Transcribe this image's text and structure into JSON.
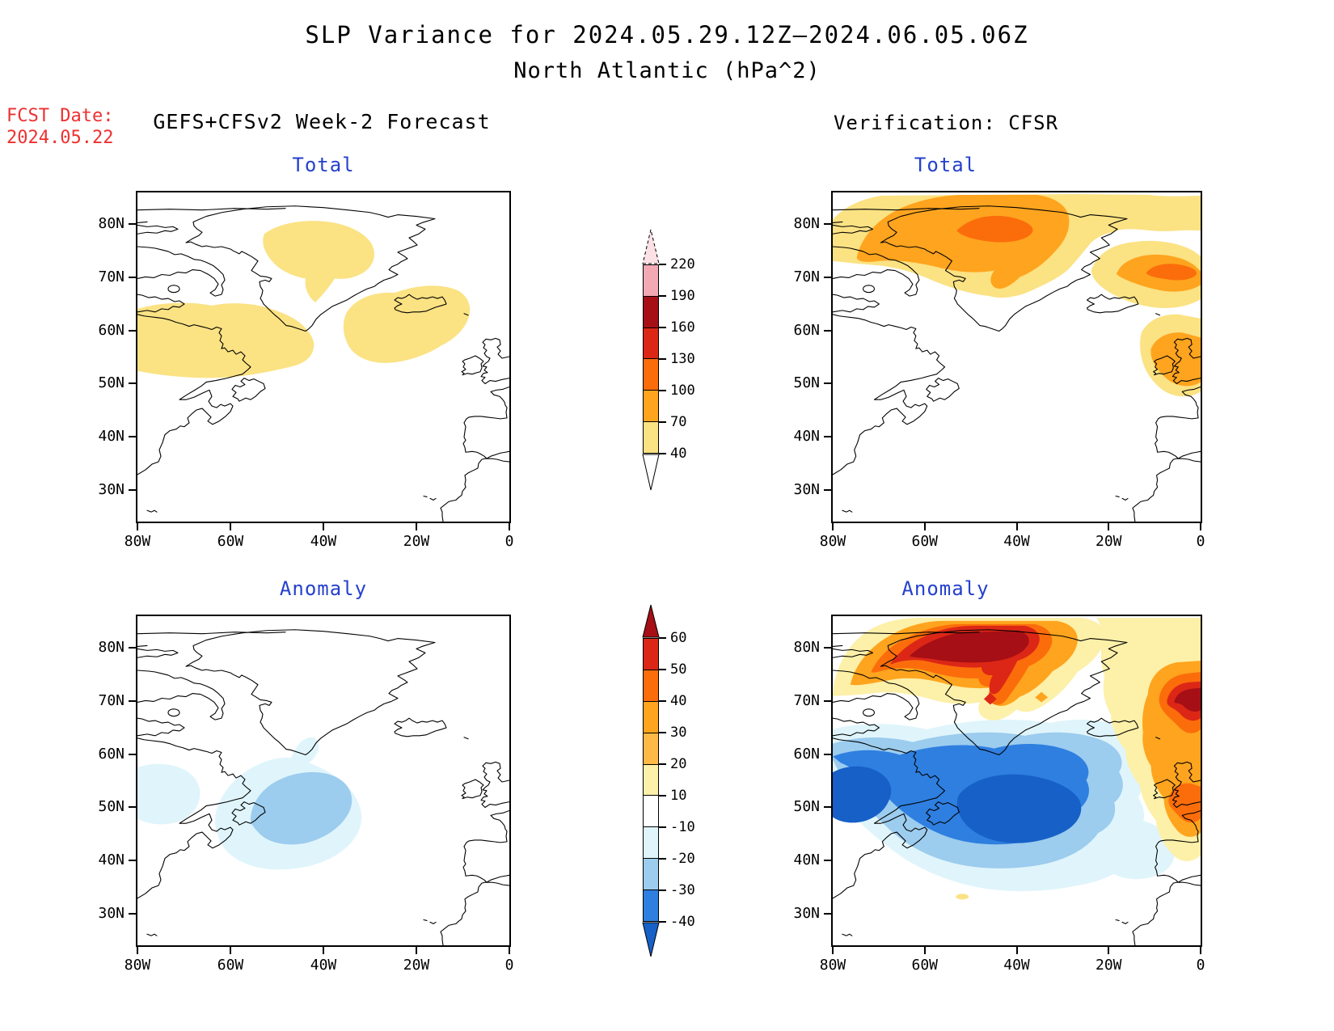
{
  "header": {
    "title_line1": "SLP Variance for 2024.05.29.12Z–2024.06.05.06Z",
    "title_line2": "North Atlantic (hPa^2)",
    "fcst_label": "FCST Date:",
    "fcst_date": "2024.05.22",
    "left_header": "GEFS+CFSv2 Week-2 Forecast",
    "right_header": "Verification: CFSR"
  },
  "panels": [
    {
      "id": "forecast-total",
      "title": "Total"
    },
    {
      "id": "verification-total",
      "title": "Total"
    },
    {
      "id": "forecast-anomaly",
      "title": "Anomaly"
    },
    {
      "id": "verification-anomaly",
      "title": "Anomaly"
    }
  ],
  "axes": {
    "lat_ticks": [
      "80N",
      "70N",
      "60N",
      "50N",
      "40N",
      "30N"
    ],
    "lon_ticks": [
      "80W",
      "60W",
      "40W",
      "20W",
      "0"
    ]
  },
  "palette": {
    "gold": "#FBE283",
    "amber": "#FFA41E",
    "lightamber": "#FFB946",
    "orange": "#FB6D0B",
    "red": "#DC2716",
    "darkred": "#A50F15",
    "pink": "#F2A9B4",
    "palepink": "#FBE0E6",
    "paleyellow": "#FDF0A8",
    "white": "#FFFFFF",
    "palecyan": "#DFF5FB",
    "lightblue": "#9CCCEE",
    "brightblue": "#2E7FE0",
    "deepblue": "#1660C8",
    "title_blue": "#2441CC",
    "label_red": "#EE3030"
  },
  "colorbars": {
    "total": {
      "boundaries": [
        "220",
        "190",
        "160",
        "130",
        "100",
        "70",
        "40"
      ],
      "segments_top_to_bottom": [
        "pink",
        "darkred",
        "red",
        "orange",
        "amber",
        "gold"
      ],
      "above_color": "palepink",
      "below_color": "white"
    },
    "anomaly": {
      "boundaries": [
        "60",
        "50",
        "40",
        "30",
        "20",
        "10",
        "-10",
        "-20",
        "-30",
        "-40"
      ],
      "segments_top_to_bottom": [
        "red",
        "orange",
        "amber",
        "lightamber",
        "paleyellow",
        "white",
        "palecyan",
        "lightblue",
        "brightblue"
      ],
      "above_color": "darkred",
      "below_color": "deepblue"
    }
  },
  "chart_data": {
    "type": "heatmap",
    "figure": "Filled-contour SLP variance maps over the North Atlantic",
    "units": "hPa^2",
    "lon_axis_labels": [
      "80W",
      "60W",
      "40W",
      "20W",
      "0"
    ],
    "lat_axis_labels": [
      "30N",
      "40N",
      "50N",
      "60N",
      "70N",
      "80N"
    ],
    "map_domain": {
      "lon": "80W to 0",
      "lat": "about 24N to 86N"
    },
    "scales": {
      "total_levels": [
        40,
        70,
        100,
        130,
        160,
        190,
        220
      ],
      "anomaly_levels": [
        -40,
        -30,
        -20,
        -10,
        10,
        20,
        30,
        40,
        50,
        60
      ]
    },
    "panels": [
      {
        "name": "forecast-total",
        "column": "GEFS+CFSv2 Week-2 Forecast",
        "title": "Total",
        "features": [
          {
            "range_hpa2": "40-70",
            "area": "lobe southeast of Greenland / Irminger Sea",
            "center": {
              "lon": "42W",
              "lat": "73N"
            }
          },
          {
            "range_hpa2": "40-70",
            "area": "broad region over Labrador and Newfoundland",
            "center": {
              "lon": "62W",
              "lat": "56N"
            }
          },
          {
            "range_hpa2": "40-70",
            "area": "region around and south of Iceland",
            "center": {
              "lon": "22W",
              "lat": "60N"
            }
          }
        ]
      },
      {
        "name": "verification-total",
        "column": "Verification: CFSR",
        "title": "Total",
        "features": [
          {
            "range_hpa2": "40-70",
            "area": "broad band across the Arctic and Greenland, 66N-85N"
          },
          {
            "range_hpa2": "70-100",
            "area": "northern Greenland and Baffin Bay"
          },
          {
            "range_hpa2": "100-130",
            "area": "core over north Greenland",
            "center": {
              "lon": "45W",
              "lat": "78N"
            }
          },
          {
            "range_hpa2": "100-130",
            "area": "core in the Norwegian Sea",
            "center": {
              "lon": "4W",
              "lat": "70N"
            }
          },
          {
            "range_hpa2": "40-100",
            "area": "lobe over the British Isles"
          }
        ]
      },
      {
        "name": "forecast-anomaly",
        "column": "GEFS+CFSv2 Week-2 Forecast",
        "title": "Anomaly",
        "features": [
          {
            "range_hpa2": "-20 to -10",
            "area": "region south of Greenland and east of Newfoundland, 38N-61N"
          },
          {
            "range_hpa2": "-30 to -20",
            "area": "core east of Newfoundland",
            "center": {
              "lon": "45W",
              "lat": "49N"
            }
          },
          {
            "range_hpa2": "-20 to -10",
            "area": "small patch at the west edge near 52N"
          }
        ]
      },
      {
        "name": "verification-anomaly",
        "column": "Verification: CFSR",
        "title": "Anomaly",
        "features": [
          {
            "range_hpa2": "> 60",
            "area": "strong positive core over north Greenland",
            "center": {
              "lon": "45W",
              "lat": "79N"
            }
          },
          {
            "range_hpa2": "> 60",
            "area": "strong positive core in the Norwegian Sea",
            "center": {
              "lon": "3W",
              "lat": "70N"
            }
          },
          {
            "range_hpa2": "10 to 60",
            "area": "positive band across the Arctic, Greenland and down to the British Isles"
          },
          {
            "range_hpa2": "< -40",
            "area": "negative core over the Labrador Sea / Quebec",
            "center": {
              "lon": "72W",
              "lat": "53N"
            }
          },
          {
            "range_hpa2": "< -40",
            "area": "negative core in the central North Atlantic",
            "center": {
              "lon": "38W",
              "lat": "49N"
            }
          },
          {
            "range_hpa2": "-40 to -10",
            "area": "broad negative band 33N-63N across the Atlantic"
          },
          {
            "range_hpa2": "10 to 20",
            "area": "tiny positive speck near 33N 43W"
          }
        ]
      }
    ]
  }
}
